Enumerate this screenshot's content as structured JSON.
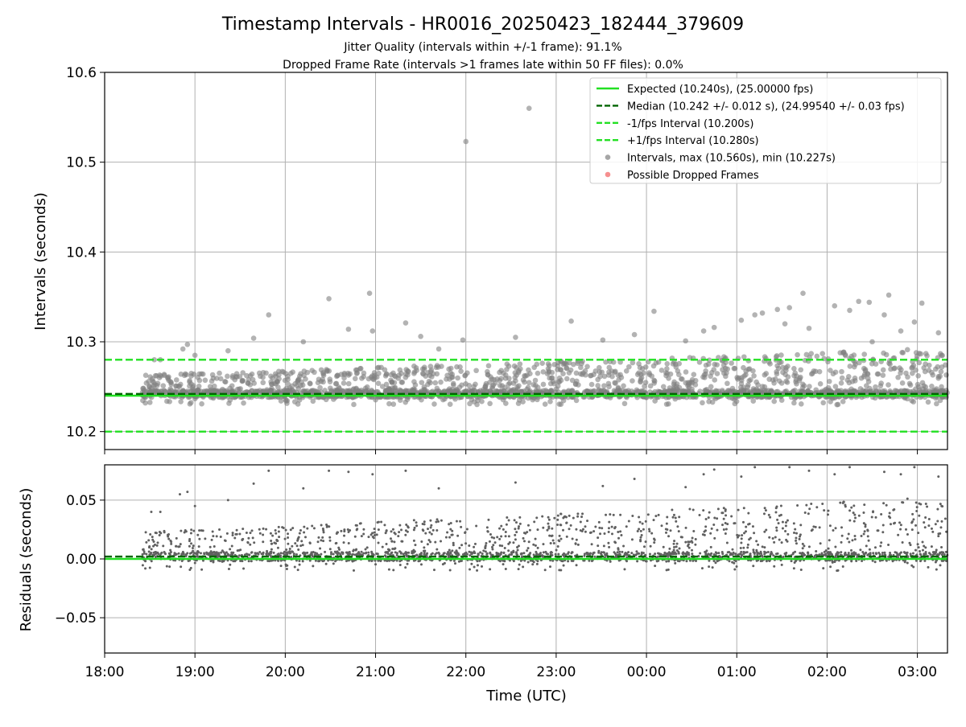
{
  "chart_data": [
    {
      "type": "scatter",
      "panel": "intervals",
      "title": "Timestamp Intervals - HR0016_20250423_182444_379609",
      "subtitles": [
        "Jitter Quality (intervals within +/-1 frame): 91.1%",
        "Dropped Frame Rate (intervals >1 frames late within 50 FF files): 0.0%"
      ],
      "xlabel": "",
      "ylabel": "Intervals (seconds)",
      "x_axis": "time-of-day (UTC)",
      "xlim": [
        "18:00",
        "03:20"
      ],
      "ylim": [
        10.18,
        10.6
      ],
      "yticks": [
        "10.2",
        "10.3",
        "10.4",
        "10.5",
        "10.6"
      ],
      "grid": true,
      "legend_placement": "top-right",
      "reference_lines": [
        {
          "name": "Expected (10.240s), (25.00000 fps)",
          "y": 10.24,
          "style": "solid",
          "color": "#22e022"
        },
        {
          "name": "Median (10.242 +/- 0.012 s), (24.99540 +/- 0.03 fps)",
          "y": 10.242,
          "style": "dashed",
          "color": "#006400"
        },
        {
          "name": "-1/fps Interval (10.200s)",
          "y": 10.2,
          "style": "dashed",
          "color": "#22e022"
        },
        {
          "name": "+1/fps Interval (10.280s)",
          "y": 10.28,
          "style": "dashed",
          "color": "#22e022"
        }
      ],
      "series": [
        {
          "name": "Intervals, max (10.560s), min (10.227s)",
          "color": "#808080",
          "marker": "circle",
          "points": [
            [
              "18:33",
              10.28
            ],
            [
              "18:37",
              10.28
            ],
            [
              "18:52",
              10.292
            ],
            [
              "18:55",
              10.297
            ],
            [
              "19:00",
              10.285
            ],
            [
              "19:22",
              10.29
            ],
            [
              "19:39",
              10.304
            ],
            [
              "19:49",
              10.33
            ],
            [
              "20:12",
              10.3
            ],
            [
              "20:29",
              10.348
            ],
            [
              "20:42",
              10.314
            ],
            [
              "20:56",
              10.354
            ],
            [
              "20:58",
              10.312
            ],
            [
              "21:20",
              10.321
            ],
            [
              "21:30",
              10.306
            ],
            [
              "21:42",
              10.292
            ],
            [
              "21:58",
              10.302
            ],
            [
              "22:00",
              10.523
            ],
            [
              "22:33",
              10.305
            ],
            [
              "22:42",
              10.56
            ],
            [
              "23:10",
              10.323
            ],
            [
              "23:31",
              10.302
            ],
            [
              "23:52",
              10.308
            ],
            [
              "00:05",
              10.334
            ],
            [
              "00:26",
              10.301
            ],
            [
              "00:38",
              10.312
            ],
            [
              "00:45",
              10.316
            ],
            [
              "01:03",
              10.324
            ],
            [
              "01:12",
              10.33
            ],
            [
              "01:17",
              10.332
            ],
            [
              "01:27",
              10.336
            ],
            [
              "01:32",
              10.32
            ],
            [
              "01:35",
              10.338
            ],
            [
              "01:44",
              10.354
            ],
            [
              "01:48",
              10.315
            ],
            [
              "02:05",
              10.34
            ],
            [
              "02:15",
              10.335
            ],
            [
              "02:21",
              10.345
            ],
            [
              "02:28",
              10.344
            ],
            [
              "02:30",
              10.3
            ],
            [
              "02:38",
              10.33
            ],
            [
              "02:41",
              10.352
            ],
            [
              "02:49",
              10.312
            ],
            [
              "02:58",
              10.322
            ],
            [
              "03:03",
              10.343
            ],
            [
              "03:14",
              10.31
            ]
          ]
        },
        {
          "name": "Possible Dropped Frames",
          "color": "#f25f5f",
          "marker": "circle",
          "points": []
        }
      ],
      "dense_band": {
        "description_range": [
          10.227,
          10.3
        ],
        "x_range": [
          "18:25",
          "03:20"
        ]
      }
    },
    {
      "type": "scatter",
      "panel": "residuals",
      "xlabel": "Time (UTC)",
      "ylabel": "Residuals (seconds)",
      "xlim": [
        "18:00",
        "03:20"
      ],
      "ylim": [
        -0.08,
        0.08
      ],
      "xticks": [
        "18:00",
        "19:00",
        "20:00",
        "21:00",
        "22:00",
        "23:00",
        "00:00",
        "01:00",
        "02:00",
        "03:00"
      ],
      "yticks": [
        "−0.05",
        "0.00",
        "0.05"
      ],
      "grid": true,
      "reference_lines": [
        {
          "y": 0.0,
          "style": "solid",
          "color": "#22e022"
        },
        {
          "y": 0.002,
          "style": "dashed",
          "color": "#006400"
        }
      ],
      "series": [
        {
          "color": "#606060",
          "marker": "dot",
          "points": [
            [
              "18:31",
              0.04
            ],
            [
              "18:37",
              0.04
            ],
            [
              "18:50",
              0.055
            ],
            [
              "18:55",
              0.057
            ],
            [
              "19:00",
              0.045
            ],
            [
              "19:22",
              0.05
            ],
            [
              "19:39",
              0.064
            ],
            [
              "19:49",
              0.075
            ],
            [
              "20:12",
              0.06
            ],
            [
              "20:29",
              0.075
            ],
            [
              "20:42",
              0.074
            ],
            [
              "20:58",
              0.072
            ],
            [
              "21:20",
              0.075
            ],
            [
              "21:42",
              0.06
            ],
            [
              "22:33",
              0.065
            ],
            [
              "23:31",
              0.062
            ],
            [
              "23:52",
              0.068
            ],
            [
              "00:26",
              0.061
            ],
            [
              "00:38",
              0.072
            ],
            [
              "00:45",
              0.076
            ],
            [
              "01:03",
              0.07
            ],
            [
              "01:12",
              0.078
            ],
            [
              "01:35",
              0.078
            ],
            [
              "01:48",
              0.075
            ],
            [
              "02:05",
              0.072
            ],
            [
              "02:15",
              0.078
            ],
            [
              "02:38",
              0.074
            ],
            [
              "02:49",
              0.072
            ],
            [
              "02:58",
              0.078
            ],
            [
              "03:14",
              0.07
            ]
          ]
        }
      ],
      "dense_band": {
        "description_range": [
          -0.013,
          0.06
        ],
        "x_range": [
          "18:25",
          "03:20"
        ]
      }
    }
  ],
  "colors": {
    "grid": "#b0b0b0",
    "expected": "#22e022",
    "median": "#006400",
    "interval_points": "#808080",
    "dropped": "#f25f5f"
  }
}
